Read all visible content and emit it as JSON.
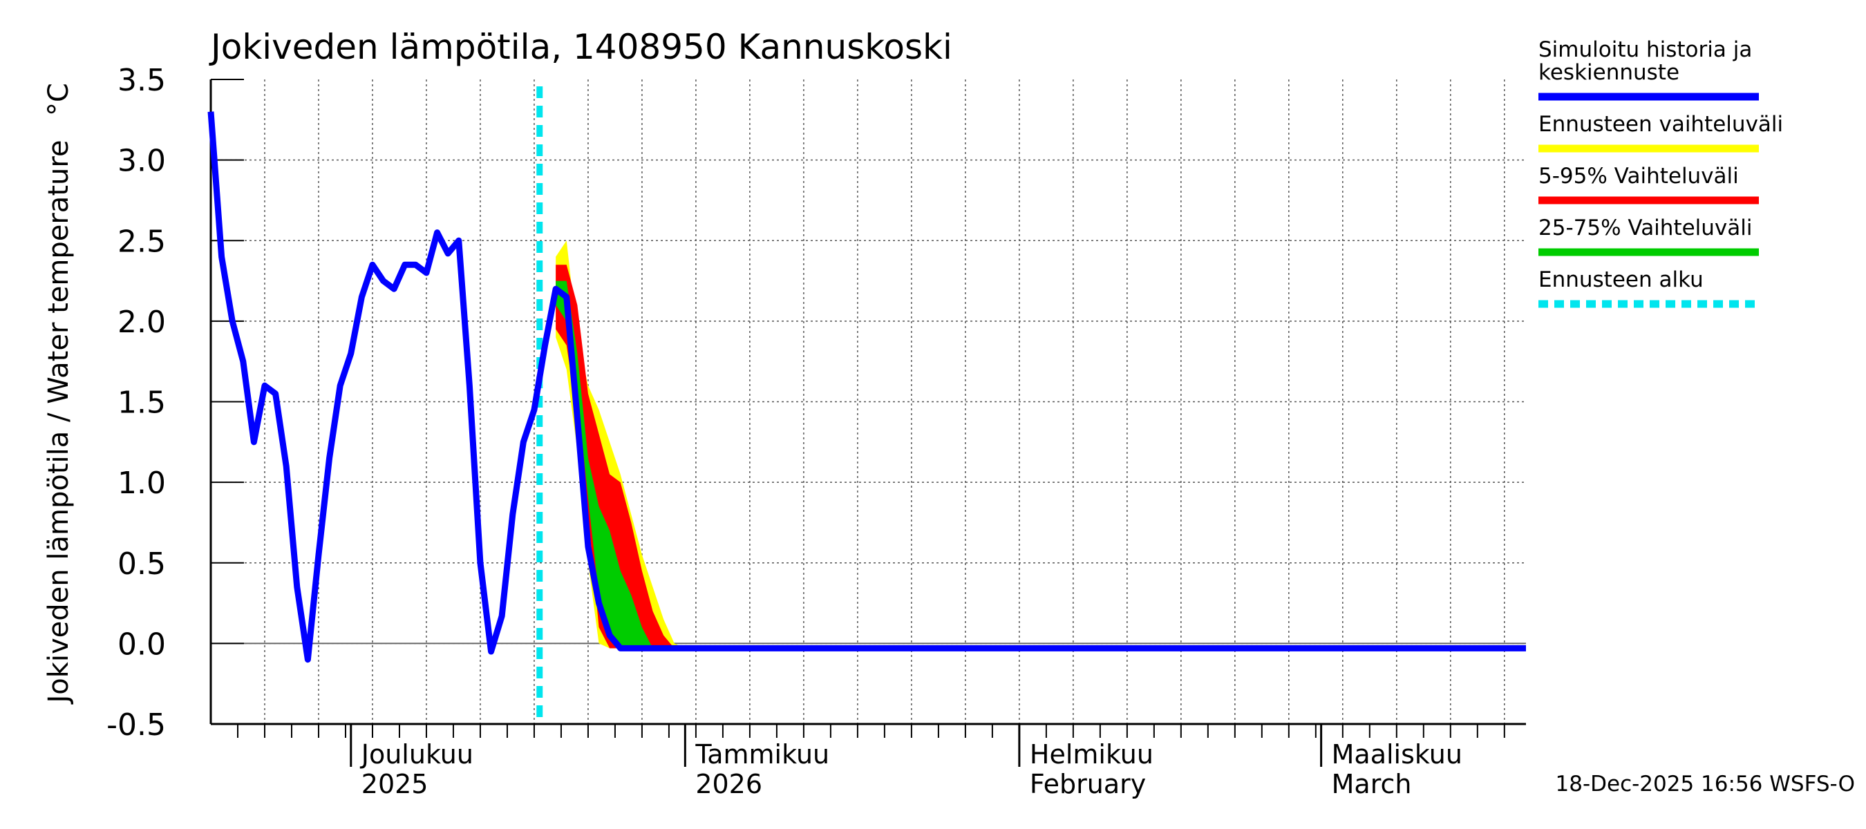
{
  "chart_data": {
    "type": "line",
    "title": "Jokiveden lämpötila, 1408950 Kannuskoski",
    "ylabel": "Jokiveden lämpötila / Water temperature",
    "yunit": "°C",
    "xlabel": "",
    "ylim": [
      -0.5,
      3.5
    ],
    "yticks": [
      "3.5",
      "3.0",
      "2.5",
      "2.0",
      "1.5",
      "1.0",
      "0.5",
      "0.0",
      "-0.5"
    ],
    "x_range_days": [
      0,
      122
    ],
    "forecast_start_day": 30.5,
    "month_labels": [
      {
        "day": 13,
        "line1": "Joulukuu",
        "line2": "2025"
      },
      {
        "day": 44,
        "line1": "Tammikuu",
        "line2": "2026"
      },
      {
        "day": 75,
        "line1": "Helmikuu",
        "line2": "February"
      },
      {
        "day": 103,
        "line1": "Maaliskuu",
        "line2": "March"
      }
    ],
    "history": {
      "name": "Simuloitu historia ja keskiennuste",
      "color": "#0000ff",
      "x": [
        0,
        1,
        2,
        3,
        4,
        5,
        6,
        7,
        8,
        9,
        10,
        11,
        12,
        13,
        14,
        15,
        16,
        17,
        18,
        19,
        20,
        21,
        22,
        23,
        24,
        25,
        26,
        27,
        28,
        29,
        30,
        31,
        32,
        33,
        34,
        35,
        36,
        37,
        38,
        39,
        40,
        122
      ],
      "values": [
        3.3,
        2.4,
        2.0,
        1.75,
        1.25,
        1.6,
        1.55,
        1.1,
        0.35,
        -0.1,
        0.55,
        1.15,
        1.6,
        1.8,
        2.15,
        2.35,
        2.25,
        2.2,
        2.35,
        2.35,
        2.3,
        2.55,
        2.42,
        2.5,
        1.6,
        0.5,
        -0.05,
        0.17,
        0.8,
        1.25,
        1.45,
        1.85,
        2.2,
        2.15,
        1.4,
        0.6,
        0.25,
        0.05,
        -0.03,
        -0.03,
        -0.03,
        -0.03
      ]
    },
    "forecast_bands": [
      {
        "name": "Ennusteen vaihteluväli",
        "color": "#ffff00",
        "x": [
          32,
          33,
          34,
          35,
          36,
          37,
          38,
          39,
          40,
          41,
          42,
          43,
          44
        ],
        "upper": [
          2.4,
          2.5,
          1.9,
          1.6,
          1.45,
          1.25,
          1.05,
          0.8,
          0.55,
          0.35,
          0.15,
          0.0,
          -0.03
        ],
        "lower": [
          1.9,
          1.7,
          1.2,
          0.5,
          0.0,
          -0.03,
          -0.03,
          -0.03,
          -0.03,
          -0.03,
          -0.03,
          -0.03,
          -0.03
        ]
      },
      {
        "name": "5-95% Vaihteluväli",
        "color": "#ff0000",
        "x": [
          32,
          33,
          34,
          35,
          36,
          37,
          38,
          39,
          40,
          41,
          42,
          43
        ],
        "upper": [
          2.35,
          2.35,
          2.1,
          1.55,
          1.3,
          1.05,
          1.0,
          0.75,
          0.45,
          0.2,
          0.05,
          -0.03
        ],
        "lower": [
          1.95,
          1.85,
          1.4,
          0.8,
          0.1,
          -0.03,
          -0.03,
          -0.03,
          -0.03,
          -0.03,
          -0.03,
          -0.03
        ]
      },
      {
        "name": "25-75% Vaihteluväli",
        "color": "#00cc00",
        "x": [
          32,
          33,
          34,
          35,
          36,
          37,
          38,
          39,
          40,
          41
        ],
        "upper": [
          2.25,
          2.25,
          1.8,
          1.15,
          0.85,
          0.7,
          0.45,
          0.3,
          0.1,
          -0.03
        ],
        "lower": [
          2.1,
          2.0,
          1.55,
          0.9,
          0.3,
          0.02,
          -0.03,
          -0.03,
          -0.03,
          -0.03
        ]
      }
    ],
    "legend": [
      {
        "label_lines": [
          "Simuloitu historia ja",
          "keskiennuste"
        ],
        "color": "#0000ff",
        "dashed": false
      },
      {
        "label_lines": [
          "Ennusteen vaihteluväli"
        ],
        "color": "#ffff00",
        "dashed": false
      },
      {
        "label_lines": [
          "5-95% Vaihteluväli"
        ],
        "color": "#ff0000",
        "dashed": false
      },
      {
        "label_lines": [
          "25-75% Vaihteluväli"
        ],
        "color": "#00cc00",
        "dashed": false
      },
      {
        "label_lines": [
          "Ennusteen alku"
        ],
        "color": "#00e5ee",
        "dashed": true
      }
    ],
    "forecast_start_label": "Ennusteen alku",
    "forecast_start_color": "#00e5ee",
    "timestamp": "18-Dec-2025 16:56 WSFS-O"
  }
}
